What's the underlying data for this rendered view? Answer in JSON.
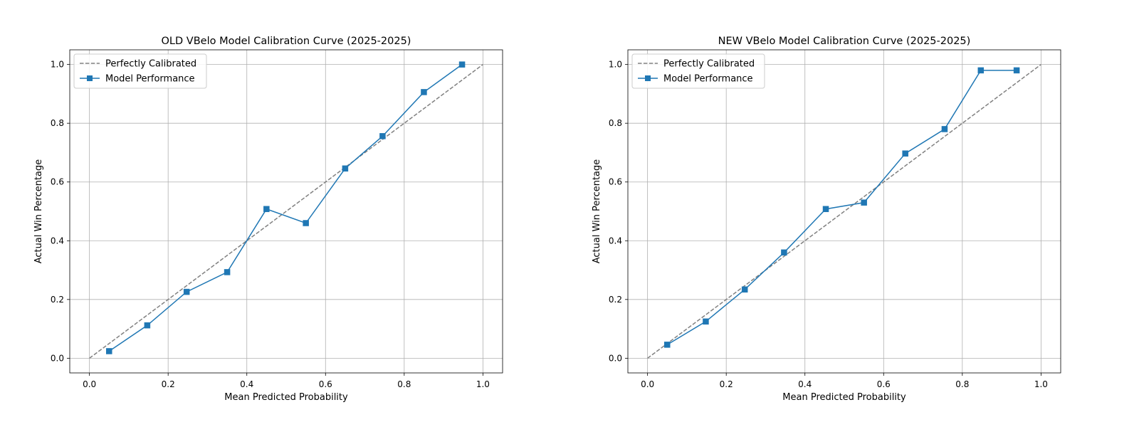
{
  "chart_data": [
    {
      "type": "line",
      "title": "OLD VBelo Model Calibration Curve (2025-2025)",
      "xlabel": "Mean Predicted Probability",
      "ylabel": "Actual Win Percentage",
      "xlim": [
        -0.05,
        1.05
      ],
      "ylim": [
        -0.05,
        1.05
      ],
      "xticks": [
        "0.0",
        "0.2",
        "0.4",
        "0.6",
        "0.8",
        "1.0"
      ],
      "yticks": [
        "0.0",
        "0.2",
        "0.4",
        "0.6",
        "0.8",
        "1.0"
      ],
      "grid": true,
      "legend_position": "top-left",
      "series": [
        {
          "name": "Perfectly Calibrated",
          "style": "dashed",
          "color": "#808080",
          "x": [
            0.0,
            1.0
          ],
          "y": [
            0.0,
            1.0
          ]
        },
        {
          "name": "Model Performance",
          "style": "solid",
          "marker": "square",
          "color": "#1f77b4",
          "x": [
            0.05,
            0.147,
            0.247,
            0.35,
            0.45,
            0.55,
            0.65,
            0.745,
            0.85,
            0.947
          ],
          "y": [
            0.024,
            0.112,
            0.226,
            0.293,
            0.508,
            0.46,
            0.646,
            0.756,
            0.906,
            1.0
          ]
        }
      ]
    },
    {
      "type": "line",
      "title": "NEW VBelo Model Calibration Curve (2025-2025)",
      "xlabel": "Mean Predicted Probability",
      "ylabel": "Actual Win Percentage",
      "xlim": [
        -0.05,
        1.05
      ],
      "ylim": [
        -0.05,
        1.05
      ],
      "xticks": [
        "0.0",
        "0.2",
        "0.4",
        "0.6",
        "0.8",
        "1.0"
      ],
      "yticks": [
        "0.0",
        "0.2",
        "0.4",
        "0.6",
        "0.8",
        "1.0"
      ],
      "grid": true,
      "legend_position": "top-left",
      "series": [
        {
          "name": "Perfectly Calibrated",
          "style": "dashed",
          "color": "#808080",
          "x": [
            0.0,
            1.0
          ],
          "y": [
            0.0,
            1.0
          ]
        },
        {
          "name": "Model Performance",
          "style": "solid",
          "marker": "square",
          "color": "#1f77b4",
          "x": [
            0.05,
            0.148,
            0.247,
            0.347,
            0.453,
            0.55,
            0.655,
            0.755,
            0.847,
            0.938
          ],
          "y": [
            0.046,
            0.125,
            0.234,
            0.36,
            0.508,
            0.53,
            0.697,
            0.78,
            0.98,
            0.98
          ]
        }
      ]
    }
  ]
}
